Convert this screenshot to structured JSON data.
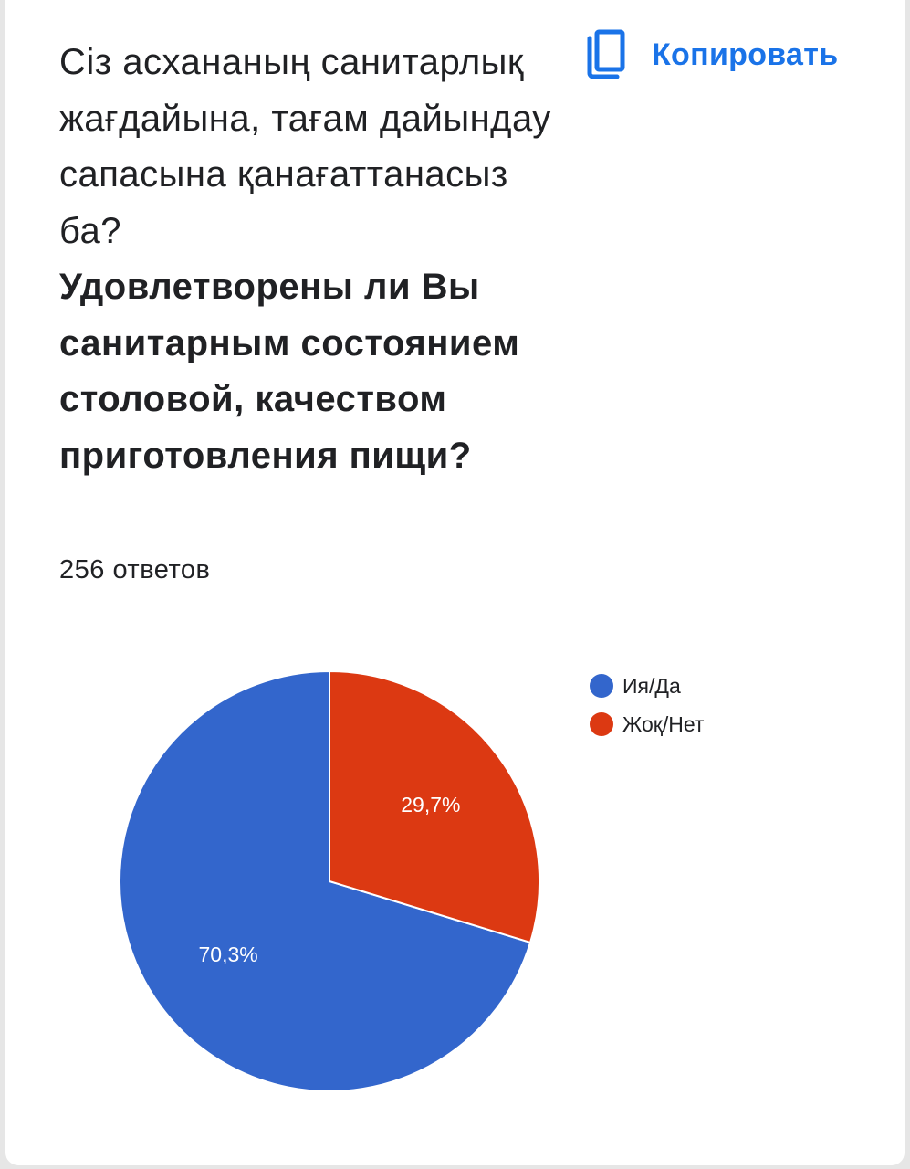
{
  "question": {
    "kz": "Сіз асхананың санитарлық жағдайына, тағам дайындау сапасына қанағаттанасыз ба?",
    "ru": "Удовлетворены ли Вы санитарным состоянием столовой, качеством приготовления пищи?"
  },
  "copy_button": {
    "label": "Копировать",
    "icon": "copy-icon"
  },
  "responses_label": "256 ответов",
  "chart_data": {
    "type": "pie",
    "slices": [
      {
        "label": "Ия/Да",
        "value": 70.3,
        "value_label": "70,3%",
        "color": "#3366cc"
      },
      {
        "label": "Жоқ/Нет",
        "value": 29.7,
        "value_label": "29,7%",
        "color": "#dc3912"
      }
    ],
    "legend_position": "right",
    "start_angle_deg": 90,
    "direction": "counterclockwise"
  }
}
